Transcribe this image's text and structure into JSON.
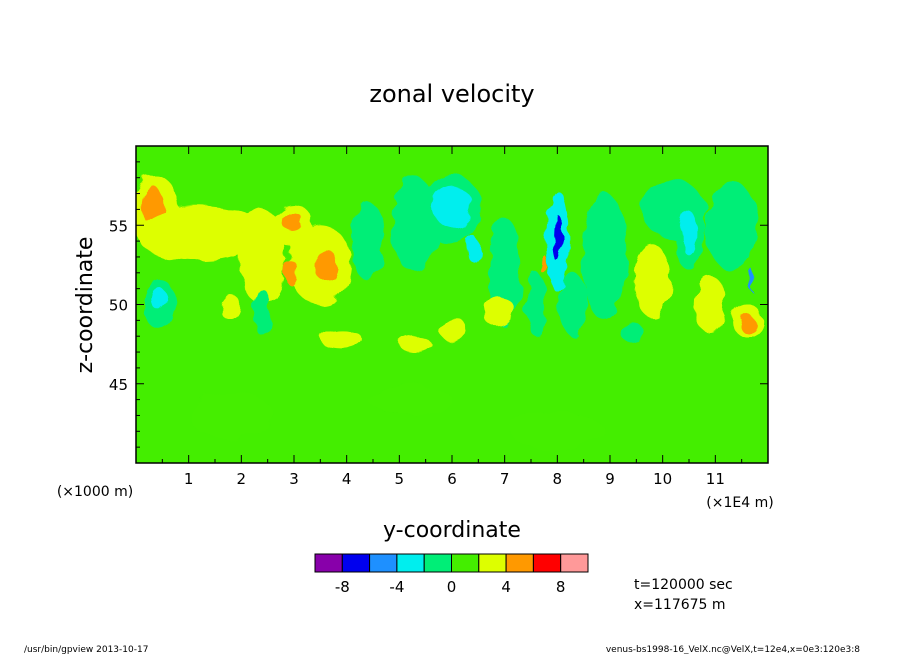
{
  "chart_data": {
    "type": "heatmap",
    "title": "zonal velocity",
    "xlabel": "y-coordinate",
    "ylabel": "z-coordinate",
    "x_unit_left": "(×1000 m)",
    "x_unit_right": "(×1E4 m)",
    "xlim": [
      0,
      12
    ],
    "ylim": [
      40,
      60
    ],
    "xticks": [
      "1",
      "2",
      "3",
      "4",
      "5",
      "6",
      "7",
      "8",
      "9",
      "10",
      "11"
    ],
    "xtick_values": [
      1,
      2,
      3,
      4,
      5,
      6,
      7,
      8,
      9,
      10,
      11
    ],
    "yticks": [
      "45",
      "50",
      "55"
    ],
    "ytick_values": [
      45,
      50,
      55
    ],
    "background_level": 0,
    "features": [
      {
        "x": 0.35,
        "y": 56,
        "rx": 0.45,
        "ry": 2.2,
        "level": 2
      },
      {
        "x": 0.3,
        "y": 56.3,
        "rx": 0.22,
        "ry": 1.2,
        "level": 4
      },
      {
        "x": 1.2,
        "y": 54.5,
        "rx": 1.2,
        "ry": 1.8,
        "level": 2
      },
      {
        "x": 2.4,
        "y": 53,
        "rx": 0.45,
        "ry": 3.0,
        "level": 2
      },
      {
        "x": 2.95,
        "y": 55,
        "rx": 0.4,
        "ry": 1.4,
        "level": 2
      },
      {
        "x": 2.95,
        "y": 55.3,
        "rx": 0.2,
        "ry": 0.6,
        "level": 4
      },
      {
        "x": 3.5,
        "y": 52.5,
        "rx": 0.6,
        "ry": 2.5,
        "level": 2
      },
      {
        "x": 3.6,
        "y": 52.5,
        "rx": 0.22,
        "ry": 1.0,
        "level": 4
      },
      {
        "x": 2.95,
        "y": 52,
        "rx": 0.12,
        "ry": 0.8,
        "level": 4
      },
      {
        "x": 3.9,
        "y": 47.8,
        "rx": 0.4,
        "ry": 0.6,
        "level": 2
      },
      {
        "x": 0.45,
        "y": 50,
        "rx": 0.3,
        "ry": 1.6,
        "level": -2
      },
      {
        "x": 0.45,
        "y": 50.3,
        "rx": 0.15,
        "ry": 0.7,
        "level": -4
      },
      {
        "x": 1.8,
        "y": 49.8,
        "rx": 0.2,
        "ry": 0.8,
        "level": 2
      },
      {
        "x": 2.4,
        "y": 49.5,
        "rx": 0.15,
        "ry": 1.5,
        "level": -2
      },
      {
        "x": 4.4,
        "y": 54,
        "rx": 0.3,
        "ry": 2.5,
        "level": -2
      },
      {
        "x": 5.3,
        "y": 55,
        "rx": 0.45,
        "ry": 3.0,
        "level": -2
      },
      {
        "x": 6.0,
        "y": 56,
        "rx": 0.55,
        "ry": 2.2,
        "level": -2
      },
      {
        "x": 6.0,
        "y": 56.2,
        "rx": 0.38,
        "ry": 1.3,
        "level": -4
      },
      {
        "x": 6.4,
        "y": 53.5,
        "rx": 0.12,
        "ry": 0.8,
        "level": -4
      },
      {
        "x": 7.0,
        "y": 52,
        "rx": 0.3,
        "ry": 3.5,
        "level": -2
      },
      {
        "x": 8.0,
        "y": 54,
        "rx": 0.22,
        "ry": 3.2,
        "level": -4
      },
      {
        "x": 8.0,
        "y": 54.2,
        "rx": 0.08,
        "ry": 1.5,
        "level": -8
      },
      {
        "x": 7.75,
        "y": 52.5,
        "rx": 0.05,
        "ry": 0.6,
        "level": 4
      },
      {
        "x": 8.9,
        "y": 53,
        "rx": 0.45,
        "ry": 4.0,
        "level": -2
      },
      {
        "x": 7.6,
        "y": 50,
        "rx": 0.2,
        "ry": 2.0,
        "level": -2
      },
      {
        "x": 8.3,
        "y": 50,
        "rx": 0.25,
        "ry": 2.0,
        "level": -2
      },
      {
        "x": 9.4,
        "y": 48.3,
        "rx": 0.2,
        "ry": 0.7,
        "level": -2
      },
      {
        "x": 10.2,
        "y": 56,
        "rx": 0.6,
        "ry": 1.8,
        "level": -2
      },
      {
        "x": 10.5,
        "y": 54.5,
        "rx": 0.3,
        "ry": 2.3,
        "level": -2
      },
      {
        "x": 10.5,
        "y": 54.5,
        "rx": 0.15,
        "ry": 1.4,
        "level": -4
      },
      {
        "x": 11.3,
        "y": 55,
        "rx": 0.5,
        "ry": 2.8,
        "level": -2
      },
      {
        "x": 11.7,
        "y": 51.5,
        "rx": 0.04,
        "ry": 0.7,
        "level": -6
      },
      {
        "x": 9.8,
        "y": 51.5,
        "rx": 0.35,
        "ry": 2.3,
        "level": 2
      },
      {
        "x": 10.9,
        "y": 50,
        "rx": 0.3,
        "ry": 1.8,
        "level": 2
      },
      {
        "x": 11.6,
        "y": 49,
        "rx": 0.3,
        "ry": 1.0,
        "level": 2
      },
      {
        "x": 11.6,
        "y": 48.8,
        "rx": 0.17,
        "ry": 0.5,
        "level": 4
      },
      {
        "x": 6.0,
        "y": 48.5,
        "rx": 0.25,
        "ry": 0.8,
        "level": 2
      },
      {
        "x": 6.9,
        "y": 49.5,
        "rx": 0.3,
        "ry": 1.0,
        "level": 2
      },
      {
        "x": 5.3,
        "y": 47.5,
        "rx": 0.3,
        "ry": 0.5,
        "level": 2
      },
      {
        "x": 1.8,
        "y": 43,
        "rx": 0.8,
        "ry": 1.5,
        "level": 0
      },
      {
        "x": 5.2,
        "y": 44,
        "rx": 0.8,
        "ry": 1.0,
        "level": 0
      },
      {
        "x": 8.0,
        "y": 42,
        "rx": 0.9,
        "ry": 1.2,
        "level": 0
      }
    ],
    "colorbar": {
      "levels": [
        -10,
        -8,
        -6,
        -4,
        -2,
        0,
        2,
        4,
        6,
        8,
        10
      ],
      "tick_labels": [
        "-8",
        "-4",
        "0",
        "4",
        "8"
      ],
      "tick_values": [
        -8,
        -4,
        0,
        4,
        8
      ],
      "colors": [
        "#8800aa",
        "#0000ee",
        "#1e90ff",
        "#00eeee",
        "#00ee77",
        "#44ee00",
        "#ddff00",
        "#ff9900",
        "#ff0000",
        "#ff9999"
      ]
    }
  },
  "annotations": {
    "time": "t=120000 sec",
    "position": "x=117675 m",
    "footer_left": "/usr/bin/gpview  2013-10-17",
    "footer_right": "venus-bs1998-16_VelX.nc@VelX,t=12e4,x=0e3:120e3:8"
  }
}
